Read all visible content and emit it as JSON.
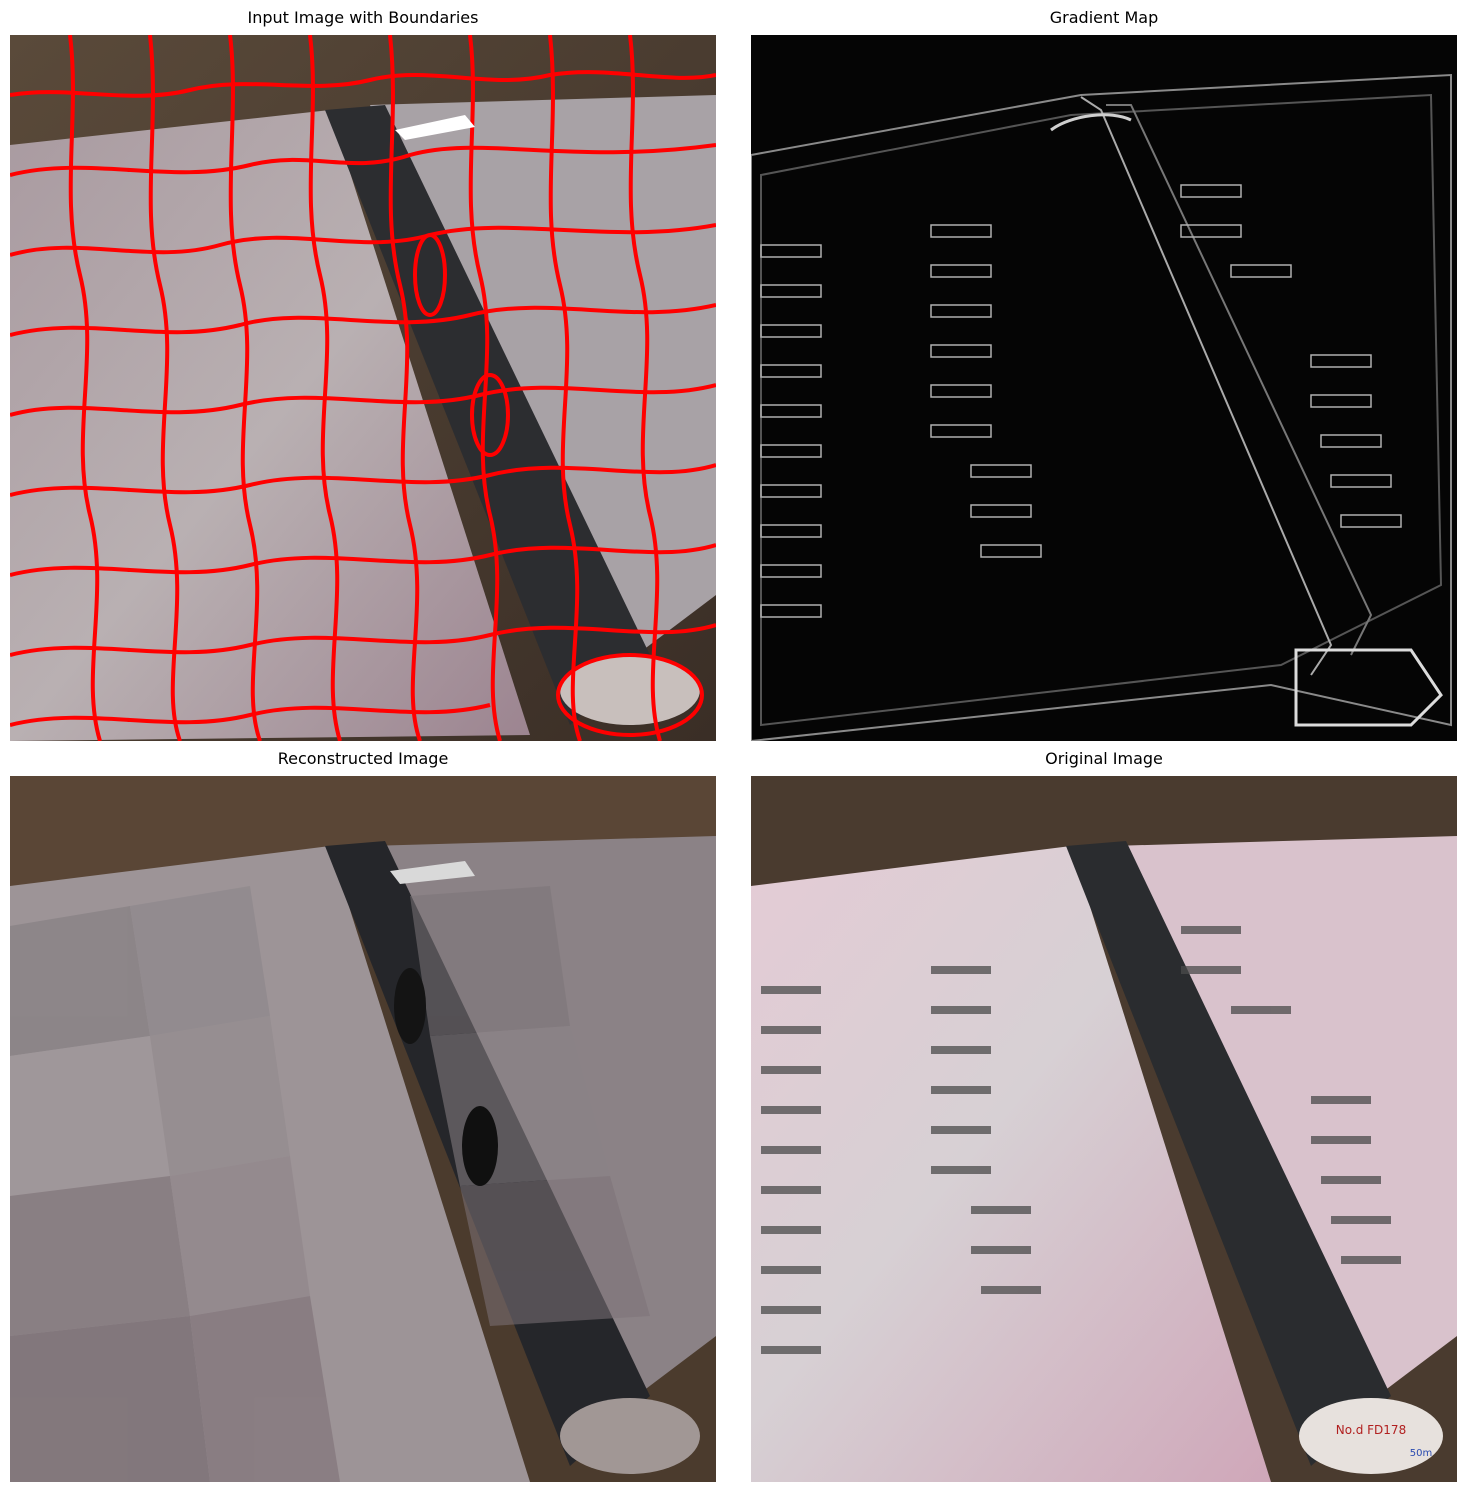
{
  "figure": {
    "panels": [
      {
        "title": "Input Image with Boundaries"
      },
      {
        "title": "Gradient Map"
      },
      {
        "title": "Reconstructed Image"
      },
      {
        "title": "Original Image"
      }
    ]
  },
  "colors": {
    "boundary": "#ff0000",
    "table_wood": "#4a3a2c",
    "menu_page": "#b8a6ac",
    "menu_pink": "#d9b7c4",
    "spine": "#2a2c2e",
    "gradient_bg": "#050505",
    "gradient_line": "#9a9a9a"
  },
  "menu_sticker_text": {
    "line1": "No.d FD178",
    "line2": "50m"
  }
}
